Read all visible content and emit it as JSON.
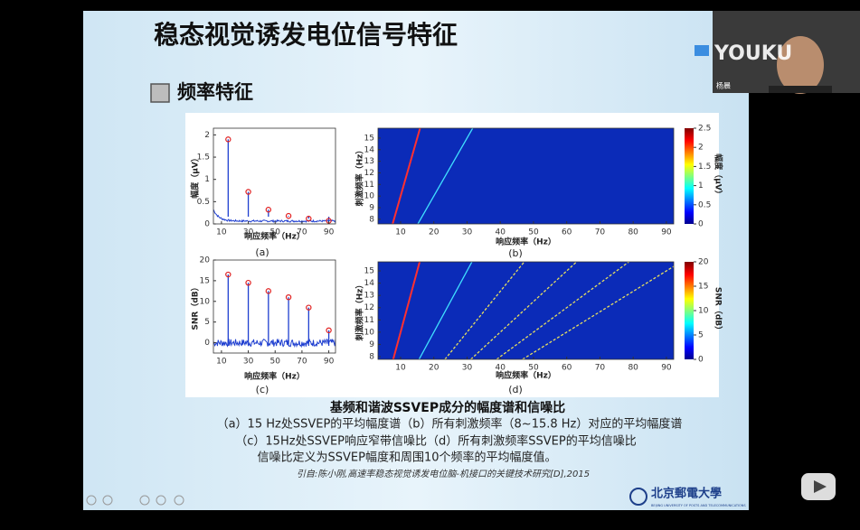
{
  "player": {
    "watermark": "YOUKU",
    "presenter": "杨晨"
  },
  "slide": {
    "title": "稳态视觉诱发电位信号特征",
    "section": "频率特征",
    "panels": [
      {
        "type": "spectrum",
        "label": "(a)",
        "xlabel": "响应频率（Hz）",
        "ylabel": "幅度（μV）",
        "xlim": [
          4,
          95
        ],
        "xticks": [
          10,
          30,
          50,
          70,
          90
        ],
        "ylim": [
          0,
          2.15
        ],
        "yticks": [
          0,
          0.5,
          1,
          1.5,
          2
        ],
        "peaks": {
          "x": [
            15,
            30,
            45,
            60,
            75,
            90
          ],
          "values": [
            1.9,
            0.72,
            0.32,
            0.18,
            0.12,
            0.07
          ]
        }
      },
      {
        "type": "heatmap",
        "label": "(b)",
        "xlabel": "响应频率（Hz）",
        "ylabel": "刺激频率（Hz）",
        "xlim": [
          3.2,
          92.2
        ],
        "xticks": [
          10,
          20,
          30,
          40,
          50,
          60,
          70,
          80,
          90
        ],
        "ylim": [
          7.6,
          15.85
        ],
        "yticks": [
          8,
          9,
          10,
          11,
          12,
          13,
          14,
          15
        ],
        "harmonics": [
          1,
          2
        ],
        "clim": [
          0,
          2.5
        ],
        "cticks": [
          0,
          0.5,
          1,
          1.5,
          2,
          2.5
        ],
        "clabel": "幅度（μV）"
      },
      {
        "type": "spectrum",
        "label": "(c)",
        "xlabel": "响应频率（Hz）",
        "ylabel": "SNR（dB）",
        "xlim": [
          4,
          95
        ],
        "xticks": [
          10,
          30,
          50,
          70,
          90
        ],
        "ylim": [
          -2.5,
          20
        ],
        "yticks": [
          0,
          5,
          10,
          15,
          20
        ],
        "peaks": {
          "x": [
            15,
            30,
            45,
            60,
            75,
            90
          ],
          "values": [
            16.5,
            14.5,
            12.5,
            11,
            8.5,
            3
          ]
        }
      },
      {
        "type": "heatmap",
        "label": "(d)",
        "xlabel": "响应频率（Hz）",
        "ylabel": "刺激频率（Hz）",
        "xlim": [
          3.2,
          92.2
        ],
        "xticks": [
          10,
          20,
          30,
          40,
          50,
          60,
          70,
          80,
          90
        ],
        "ylim": [
          7.78,
          15.74
        ],
        "yticks": [
          8,
          9,
          10,
          11,
          12,
          13,
          14,
          15
        ],
        "harmonics": [
          1,
          2,
          3,
          4,
          5,
          6
        ],
        "clim": [
          0,
          20
        ],
        "cticks": [
          0,
          5,
          10,
          15,
          20
        ],
        "clabel": "SNR（dB）"
      }
    ],
    "caption_title": "基频和谐波SSVEP成分的幅度谱和信噪比",
    "caption_lines": [
      "（a）15 Hz处SSVEP的平均幅度谱（b）所有刺激频率（8~15.8 Hz）对应的平均幅度谱",
      "（c）15Hz处SSVEP响应窄带信噪比（d）所有刺激频率SSVEP的平均信噪比",
      "信噪比定义为SSVEP幅度和周围10个频率的平均幅度值。"
    ],
    "citation": "引自:陈小刚,高速率稳态视觉诱发电位脑-机接口的关键技术研究[D],2015",
    "logo": "北京郵電大學",
    "logo_sub": "BEIJING UNIVERSITY OF POSTS AND TELECOMMUNICATIONS"
  }
}
